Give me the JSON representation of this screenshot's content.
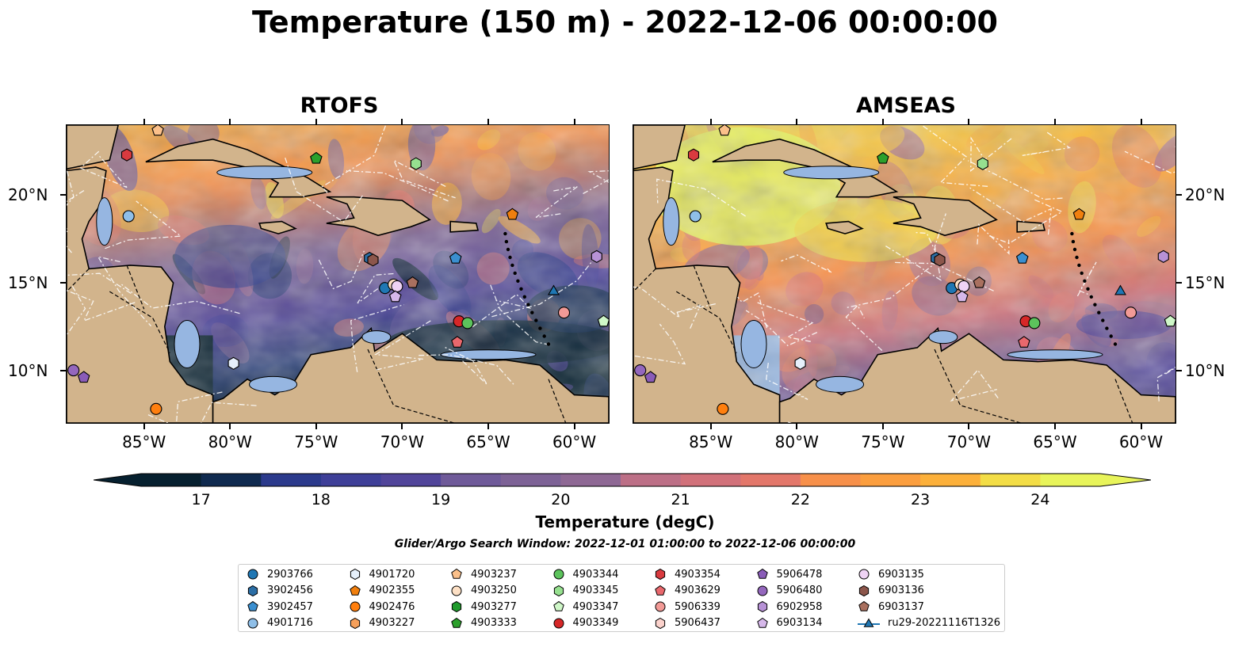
{
  "title": "Temperature (150 m) - 2022-12-06 00:00:00",
  "panels": [
    {
      "title": "RTOFS",
      "palette": "cool"
    },
    {
      "title": "AMSEAS",
      "palette": "warm"
    }
  ],
  "x_ticks": [
    "85°W",
    "80°W",
    "75°W",
    "70°W",
    "65°W",
    "60°W"
  ],
  "y_ticks": [
    "20°N",
    "15°N",
    "10°N"
  ],
  "colorbar": {
    "title": "Temperature (degC)",
    "ticks": [
      "17",
      "18",
      "19",
      "20",
      "21",
      "22",
      "23",
      "24"
    ],
    "min": 16.5,
    "max": 24.5,
    "step": 0.5,
    "extend": "both",
    "colors": [
      "#06202f",
      "#0f2a4f",
      "#1d3470",
      "#2b3a8c",
      "#3e3f98",
      "#51459a",
      "#61509a",
      "#6f5a99",
      "#7d6296",
      "#8e6894",
      "#a56d8f",
      "#bc6f86",
      "#d1717a",
      "#e3776a",
      "#f0825a",
      "#f7904a",
      "#fb9e3e",
      "#fcb03a",
      "#f9c63d",
      "#f3dd46",
      "#e8f45a"
    ]
  },
  "search_window": "Glider/Argo Search Window: 2022-12-01 01:00:00 to 2022-12-06 00:00:00",
  "legend": [
    {
      "label": "2903766",
      "marker": "circle",
      "color": "#1f77b4"
    },
    {
      "label": "3902456",
      "marker": "hexagon",
      "color": "#2b6ea5"
    },
    {
      "label": "3902457",
      "marker": "pentagon",
      "color": "#3a8fd0"
    },
    {
      "label": "4901716",
      "marker": "circle",
      "color": "#8fbfe8"
    },
    {
      "label": "4901720",
      "marker": "hexagon",
      "color": "#e6f0fb"
    },
    {
      "label": "4902355",
      "marker": "pentagon",
      "color": "#f07f0e"
    },
    {
      "label": "4902476",
      "marker": "circle",
      "color": "#ff7f0e"
    },
    {
      "label": "4903227",
      "marker": "hexagon",
      "color": "#f6a05b"
    },
    {
      "label": "4903237",
      "marker": "pentagon",
      "color": "#fbc08a"
    },
    {
      "label": "4903250",
      "marker": "circle",
      "color": "#fde0c5"
    },
    {
      "label": "4903277",
      "marker": "hexagon",
      "color": "#1f9a2c"
    },
    {
      "label": "4903333",
      "marker": "pentagon",
      "color": "#2ca02c"
    },
    {
      "label": "4903344",
      "marker": "circle",
      "color": "#5cc35c"
    },
    {
      "label": "4903345",
      "marker": "hexagon",
      "color": "#96e08f"
    },
    {
      "label": "4903347",
      "marker": "pentagon",
      "color": "#cff7c8"
    },
    {
      "label": "4903349",
      "marker": "circle",
      "color": "#d62728"
    },
    {
      "label": "4903354",
      "marker": "hexagon",
      "color": "#d93a3f"
    },
    {
      "label": "4903629",
      "marker": "pentagon",
      "color": "#e9686d"
    },
    {
      "label": "5906339",
      "marker": "circle",
      "color": "#f29a96"
    },
    {
      "label": "5906437",
      "marker": "hexagon",
      "color": "#fbd2cc"
    },
    {
      "label": "5906478",
      "marker": "pentagon",
      "color": "#8a5cb8"
    },
    {
      "label": "5906480",
      "marker": "circle",
      "color": "#9467bd"
    },
    {
      "label": "6902958",
      "marker": "hexagon",
      "color": "#b792d6"
    },
    {
      "label": "6903134",
      "marker": "pentagon",
      "color": "#d6b8ea"
    },
    {
      "label": "6903135",
      "marker": "circle",
      "color": "#efd3f5"
    },
    {
      "label": "6903136",
      "marker": "hexagon",
      "color": "#8c564b"
    },
    {
      "label": "6903137",
      "marker": "pentagon",
      "color": "#a9705f"
    },
    {
      "label": "ru29-20221116T1326",
      "marker": "triangle",
      "color": "#1f77b4"
    }
  ],
  "points": [
    {
      "name": "4903237",
      "lon": -84.2,
      "lat": 23.7
    },
    {
      "name": "4903354",
      "lon": -86.0,
      "lat": 22.3
    },
    {
      "name": "4903333",
      "lon": -75.0,
      "lat": 22.1
    },
    {
      "name": "4903345",
      "lon": -69.2,
      "lat": 21.8
    },
    {
      "name": "4901716",
      "lon": -85.9,
      "lat": 18.8
    },
    {
      "name": "4902355",
      "lon": -63.6,
      "lat": 18.9
    },
    {
      "name": "3902456",
      "lon": -71.9,
      "lat": 16.4
    },
    {
      "name": "6903136",
      "lon": -71.7,
      "lat": 16.3
    },
    {
      "name": "3902457",
      "lon": -66.9,
      "lat": 16.4
    },
    {
      "name": "6902958",
      "lon": -58.7,
      "lat": 16.5
    },
    {
      "name": "2903766",
      "lon": -71.0,
      "lat": 14.7
    },
    {
      "name": "4903250",
      "lon": -70.5,
      "lat": 14.9
    },
    {
      "name": "6903135",
      "lon": -70.3,
      "lat": 14.8
    },
    {
      "name": "6903134",
      "lon": -70.4,
      "lat": 14.2
    },
    {
      "name": "6903137",
      "lon": -69.4,
      "lat": 15.0
    },
    {
      "name": "ru29-20221116T1326",
      "lon": -61.2,
      "lat": 14.5
    },
    {
      "name": "5906339",
      "lon": -60.6,
      "lat": 13.3
    },
    {
      "name": "4903347",
      "lon": -58.3,
      "lat": 12.8
    },
    {
      "name": "4903349",
      "lon": -66.7,
      "lat": 12.8
    },
    {
      "name": "4903344",
      "lon": -66.2,
      "lat": 12.7
    },
    {
      "name": "4903629",
      "lon": -66.8,
      "lat": 11.6
    },
    {
      "name": "4901720",
      "lon": -79.8,
      "lat": 10.4
    },
    {
      "name": "5906480",
      "lon": -89.1,
      "lat": 10.0
    },
    {
      "name": "5906478",
      "lon": -88.5,
      "lat": 9.6
    },
    {
      "name": "4902476",
      "lon": -84.3,
      "lat": 7.8
    }
  ],
  "extent": {
    "lon_min": -89.5,
    "lon_max": -58.0,
    "lat_min": 7.0,
    "lat_max": 24.0
  }
}
